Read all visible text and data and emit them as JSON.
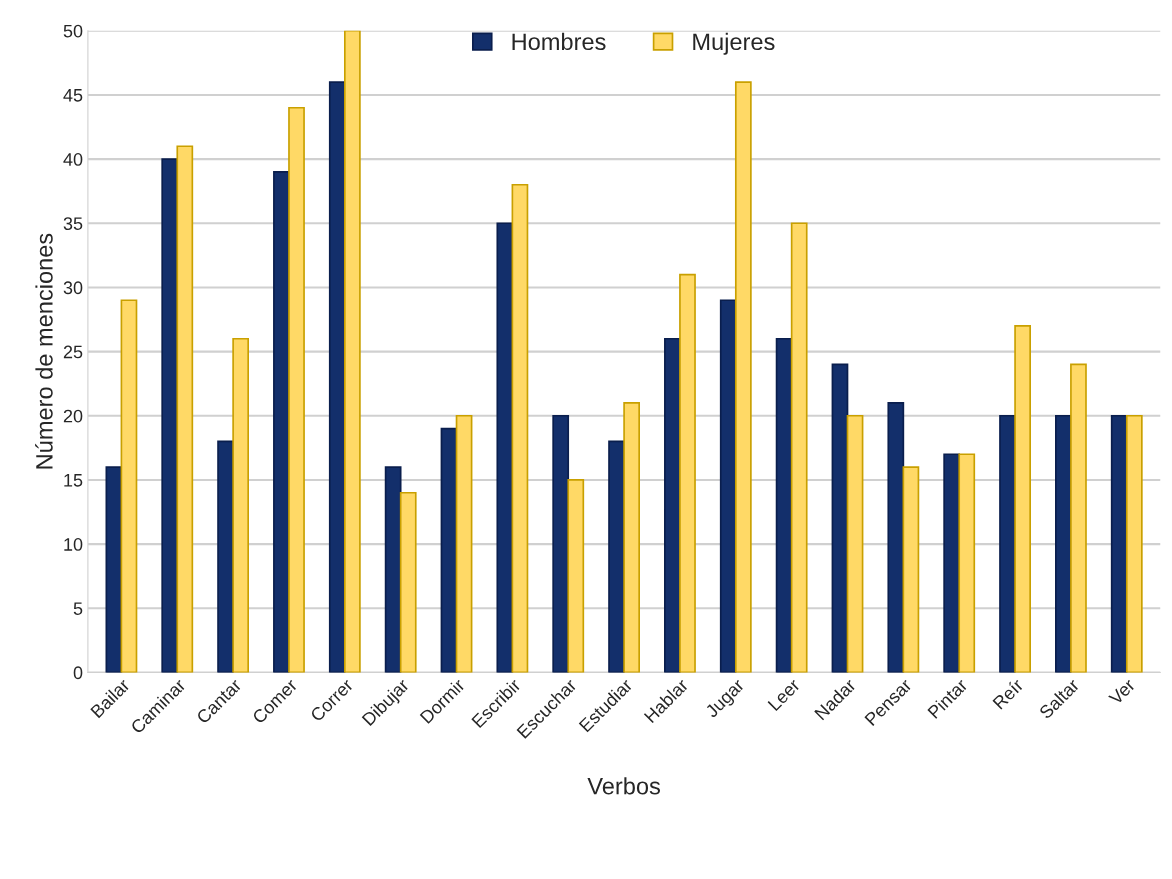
{
  "chart_data": {
    "type": "bar",
    "xlabel": "Verbos",
    "ylabel": "Número de menciones",
    "categories": [
      "Bailar",
      "Caminar",
      "Cantar",
      "Comer",
      "Correr",
      "Dibujar",
      "Dormir",
      "Escribir",
      "Escuchar",
      "Estudiar",
      "Hablar",
      "Jugar",
      "Leer",
      "Nadar",
      "Pensar",
      "Pintar",
      "Reír",
      "Saltar",
      "Ver"
    ],
    "series": [
      {
        "name": "Hombres",
        "color": "#132f6b",
        "values": [
          16,
          40,
          18,
          39,
          46,
          16,
          19,
          35,
          20,
          18,
          26,
          29,
          26,
          24,
          21,
          17,
          20,
          20,
          20
        ]
      },
      {
        "name": "Mujeres",
        "color": "#ffd966",
        "values": [
          29,
          41,
          26,
          44,
          50,
          14,
          20,
          38,
          15,
          21,
          31,
          46,
          35,
          20,
          16,
          17,
          27,
          24,
          20
        ]
      }
    ],
    "ylim": [
      0,
      50
    ],
    "yticks": [
      0,
      5,
      10,
      15,
      20,
      25,
      30,
      35,
      40,
      45,
      50
    ],
    "grid": "y",
    "legend": "top"
  }
}
